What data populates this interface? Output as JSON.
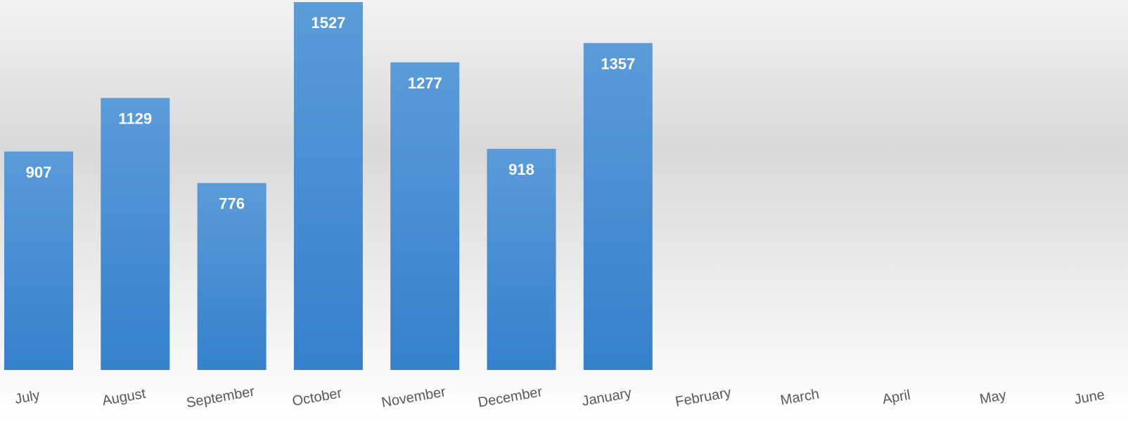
{
  "chart_data": {
    "type": "bar",
    "categories": [
      "July",
      "August",
      "September",
      "October",
      "November",
      "December",
      "January",
      "February",
      "March",
      "April",
      "May",
      "June"
    ],
    "values": [
      907,
      1129,
      776,
      1527,
      1277,
      918,
      1357,
      null,
      null,
      null,
      null,
      null
    ],
    "color": "#4a8fd4"
  }
}
